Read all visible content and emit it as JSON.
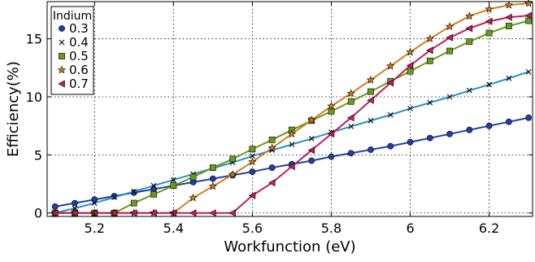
{
  "chart_data": {
    "type": "line",
    "title": "",
    "xlabel": "Workfunction (eV)",
    "ylabel": "Efficiency(%)",
    "xlim": [
      5.08,
      6.31
    ],
    "ylim": [
      -0.3,
      18.2
    ],
    "xticks": [
      5.2,
      5.4,
      5.6,
      5.8,
      6.0,
      6.2
    ],
    "xtick_labels": [
      "5.2",
      "5.4",
      "5.6",
      "5.8",
      "6",
      "6.2"
    ],
    "yticks": [
      0,
      5,
      10,
      15
    ],
    "ytick_labels": [
      "0",
      "5",
      "10",
      "15"
    ],
    "grid": true,
    "legend_position": "top-left",
    "legend_title": "Indium",
    "x": [
      5.1,
      5.15,
      5.2,
      5.25,
      5.3,
      5.35,
      5.4,
      5.45,
      5.5,
      5.55,
      5.6,
      5.65,
      5.7,
      5.75,
      5.8,
      5.85,
      5.9,
      5.95,
      6.0,
      6.05,
      6.1,
      6.15,
      6.2,
      6.25,
      6.3
    ],
    "series": [
      {
        "name": "0.3",
        "color": "#1f3fa6",
        "marker": "circle",
        "values": [
          0.55,
          0.85,
          1.15,
          1.45,
          1.75,
          2.05,
          2.35,
          2.65,
          2.95,
          3.25,
          3.55,
          3.9,
          4.2,
          4.5,
          4.85,
          5.15,
          5.45,
          5.75,
          6.1,
          6.45,
          6.8,
          7.15,
          7.5,
          7.85,
          8.2
        ]
      },
      {
        "name": "0.4",
        "color": "#2a8fc4",
        "marker": "x",
        "values": [
          0.0,
          0.4,
          0.85,
          1.35,
          1.85,
          2.35,
          2.85,
          3.35,
          3.85,
          4.35,
          4.9,
          5.4,
          5.9,
          6.4,
          6.95,
          7.45,
          7.95,
          8.45,
          9.0,
          9.5,
          10.0,
          10.55,
          11.05,
          11.6,
          12.15
        ]
      },
      {
        "name": "0.5",
        "color": "#6a9a1a",
        "marker": "square",
        "values": [
          0.0,
          0.0,
          0.0,
          0.0,
          0.85,
          1.6,
          2.35,
          3.1,
          3.9,
          4.65,
          5.5,
          6.3,
          7.15,
          7.95,
          8.75,
          9.6,
          10.45,
          11.35,
          12.2,
          13.1,
          13.95,
          14.75,
          15.5,
          16.1,
          16.55
        ]
      },
      {
        "name": "0.6",
        "color": "#d07f1c",
        "marker": "star",
        "values": [
          0.0,
          0.0,
          0.0,
          0.0,
          0.0,
          0.0,
          0.0,
          1.3,
          2.3,
          3.3,
          4.4,
          5.6,
          6.8,
          8.0,
          9.2,
          10.3,
          11.45,
          12.65,
          13.85,
          15.0,
          16.05,
          16.95,
          17.55,
          17.9,
          18.05
        ]
      },
      {
        "name": "0.7",
        "color": "#c41c5c",
        "marker": "triangle-left",
        "values": [
          0.0,
          0.0,
          0.0,
          0.0,
          0.0,
          0.0,
          0.0,
          0.0,
          0.0,
          0.0,
          1.5,
          2.6,
          4.0,
          5.4,
          6.8,
          8.2,
          9.7,
          11.2,
          12.7,
          14.0,
          15.1,
          15.9,
          16.5,
          16.85,
          17.0
        ]
      }
    ]
  }
}
